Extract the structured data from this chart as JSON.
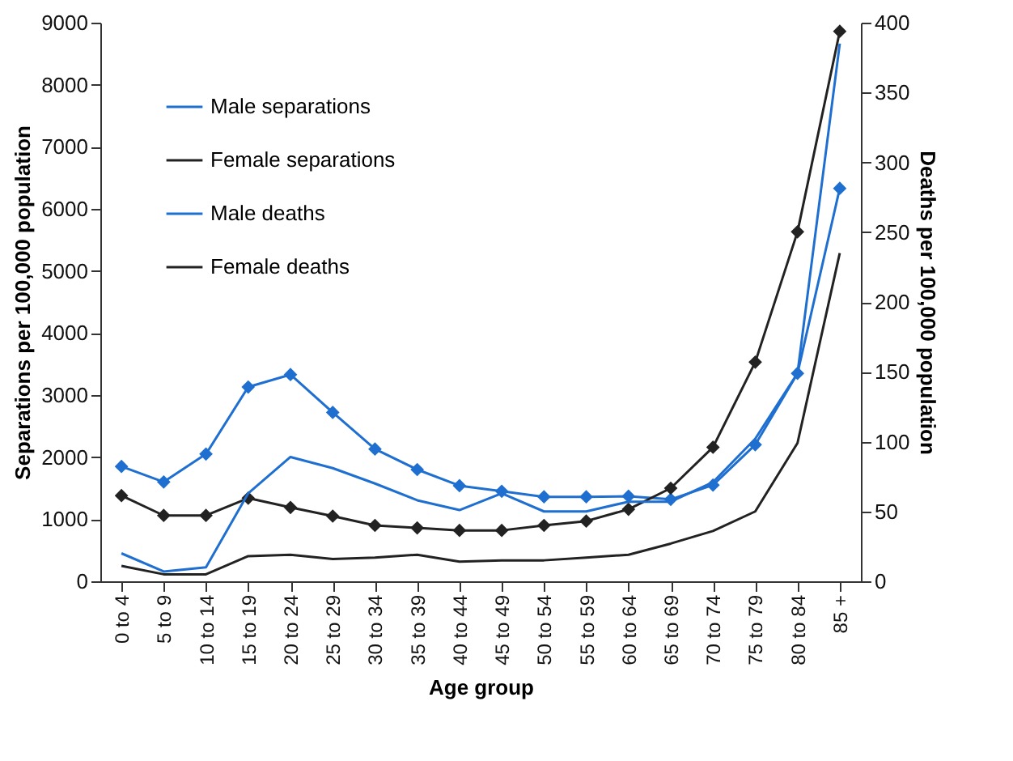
{
  "chart_data": {
    "type": "line",
    "xlabel": "Age group",
    "ylabel": "Separations per 100,000 population",
    "y2label": "Deaths per 100,000 population",
    "categories": [
      "0 to 4",
      "5 to 9",
      "10 to 14",
      "15 to 19",
      "20 to 24",
      "25 to 29",
      "30 to 34",
      "35 to 39",
      "40 to 44",
      "45 to 49",
      "50 to 54",
      "55 to 59",
      "60 to 64",
      "65 to 69",
      "70 to 74",
      "75 to 79",
      "80 to 84",
      "85 +"
    ],
    "series": [
      {
        "name": "Male separations",
        "color": "#1f6fd0",
        "marker": "diamond",
        "values": [
          1850,
          1600,
          2050,
          3130,
          3330,
          2720,
          2130,
          1800,
          1540,
          1450,
          1360,
          1360,
          1370,
          1320,
          1550,
          2200,
          3350,
          6330
        ]
      },
      {
        "name": "Female separations",
        "color": "#222222",
        "marker": "diamond",
        "values": [
          1380,
          1060,
          1060,
          1340,
          1190,
          1050,
          900,
          860,
          820,
          820,
          900,
          970,
          1160,
          1500,
          2160,
          3530,
          5630,
          8860
        ]
      },
      {
        "name": "Male deaths",
        "color": "#1f6fd0",
        "marker": "none",
        "axis": "y2",
        "values": [
          20,
          7,
          10,
          63,
          89,
          81,
          70,
          58,
          51,
          63,
          50,
          50,
          57,
          57,
          71,
          102,
          149,
          385
        ]
      },
      {
        "name": "Female deaths",
        "color": "#222222",
        "marker": "none",
        "axis": "y2",
        "values": [
          11,
          5,
          5,
          18,
          19,
          16,
          17,
          19,
          14,
          15,
          15,
          17,
          19,
          27,
          36,
          50,
          99,
          235
        ]
      }
    ],
    "ylim": [
      0,
      9000
    ],
    "yticks": [
      0,
      1000,
      2000,
      3000,
      4000,
      5000,
      6000,
      7000,
      8000,
      9000
    ],
    "y2lim": [
      0,
      400
    ],
    "y2ticks": [
      0,
      50,
      100,
      150,
      200,
      250,
      300,
      350,
      400
    ],
    "grid": false,
    "legend": "top left",
    "line_style": "solid"
  }
}
